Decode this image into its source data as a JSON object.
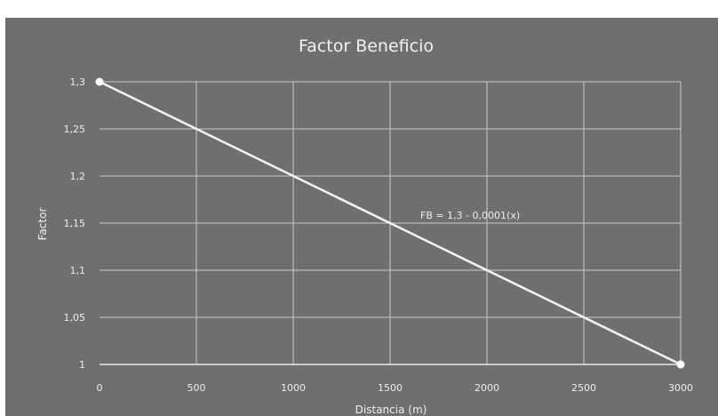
{
  "chart_data": {
    "type": "line",
    "title": "Factor Beneficio",
    "xlabel": "Distancia (m)",
    "ylabel": "Factor",
    "xlim": [
      0,
      3000
    ],
    "ylim": [
      1,
      1.3
    ],
    "x_ticks": [
      "0",
      "500",
      "1000",
      "1500",
      "2000",
      "2500",
      "3000"
    ],
    "y_ticks": [
      "1",
      "1,05",
      "1,1",
      "1,15",
      "1,2",
      "1,25",
      "1,3"
    ],
    "grid": true,
    "series": [
      {
        "x": [
          0,
          3000
        ],
        "y": [
          1.3,
          1.0
        ]
      }
    ],
    "annotation": "FB = 1,3 - 0,0001(x)",
    "colors": {
      "background": "#6f6f6f",
      "line": "#f4f4f4",
      "grid": "#c9c9c9",
      "text": "#efefef"
    }
  }
}
